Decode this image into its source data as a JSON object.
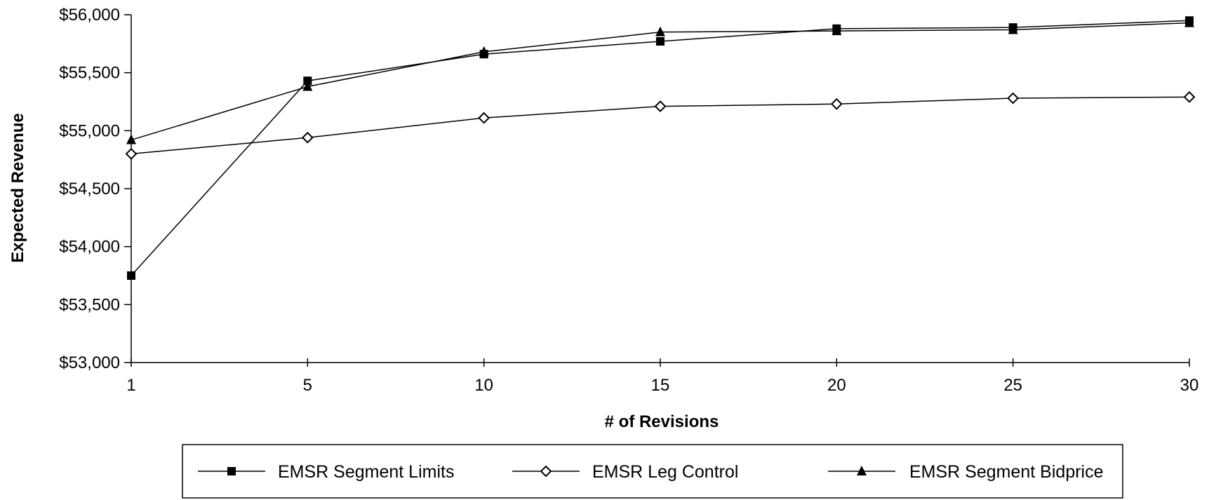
{
  "chart_data": {
    "type": "line",
    "title": "",
    "xlabel": "# of Revisions",
    "ylabel": "Expected Revenue",
    "categories": [
      1,
      5,
      10,
      15,
      20,
      25,
      30
    ],
    "ylim": [
      53000,
      56000
    ],
    "yticks": [
      53000,
      53500,
      54000,
      54500,
      55000,
      55500,
      56000
    ],
    "ytick_labels": [
      "$53,000",
      "$53,500",
      "$54,000",
      "$54,500",
      "$55,000",
      "$55,500",
      "$56,000"
    ],
    "grid": false,
    "legend_position": "bottom",
    "series": [
      {
        "name": "EMSR Segment Limits",
        "marker": "square-filled",
        "values": [
          53750,
          55430,
          55660,
          55770,
          55880,
          55890,
          55950
        ]
      },
      {
        "name": "EMSR Leg Control",
        "marker": "diamond-open",
        "values": [
          54800,
          54940,
          55110,
          55210,
          55230,
          55280,
          55290
        ]
      },
      {
        "name": "EMSR Segment Bidprice",
        "marker": "triangle-filled",
        "values": [
          54920,
          55380,
          55680,
          55850,
          55860,
          55870,
          55930
        ]
      }
    ]
  }
}
